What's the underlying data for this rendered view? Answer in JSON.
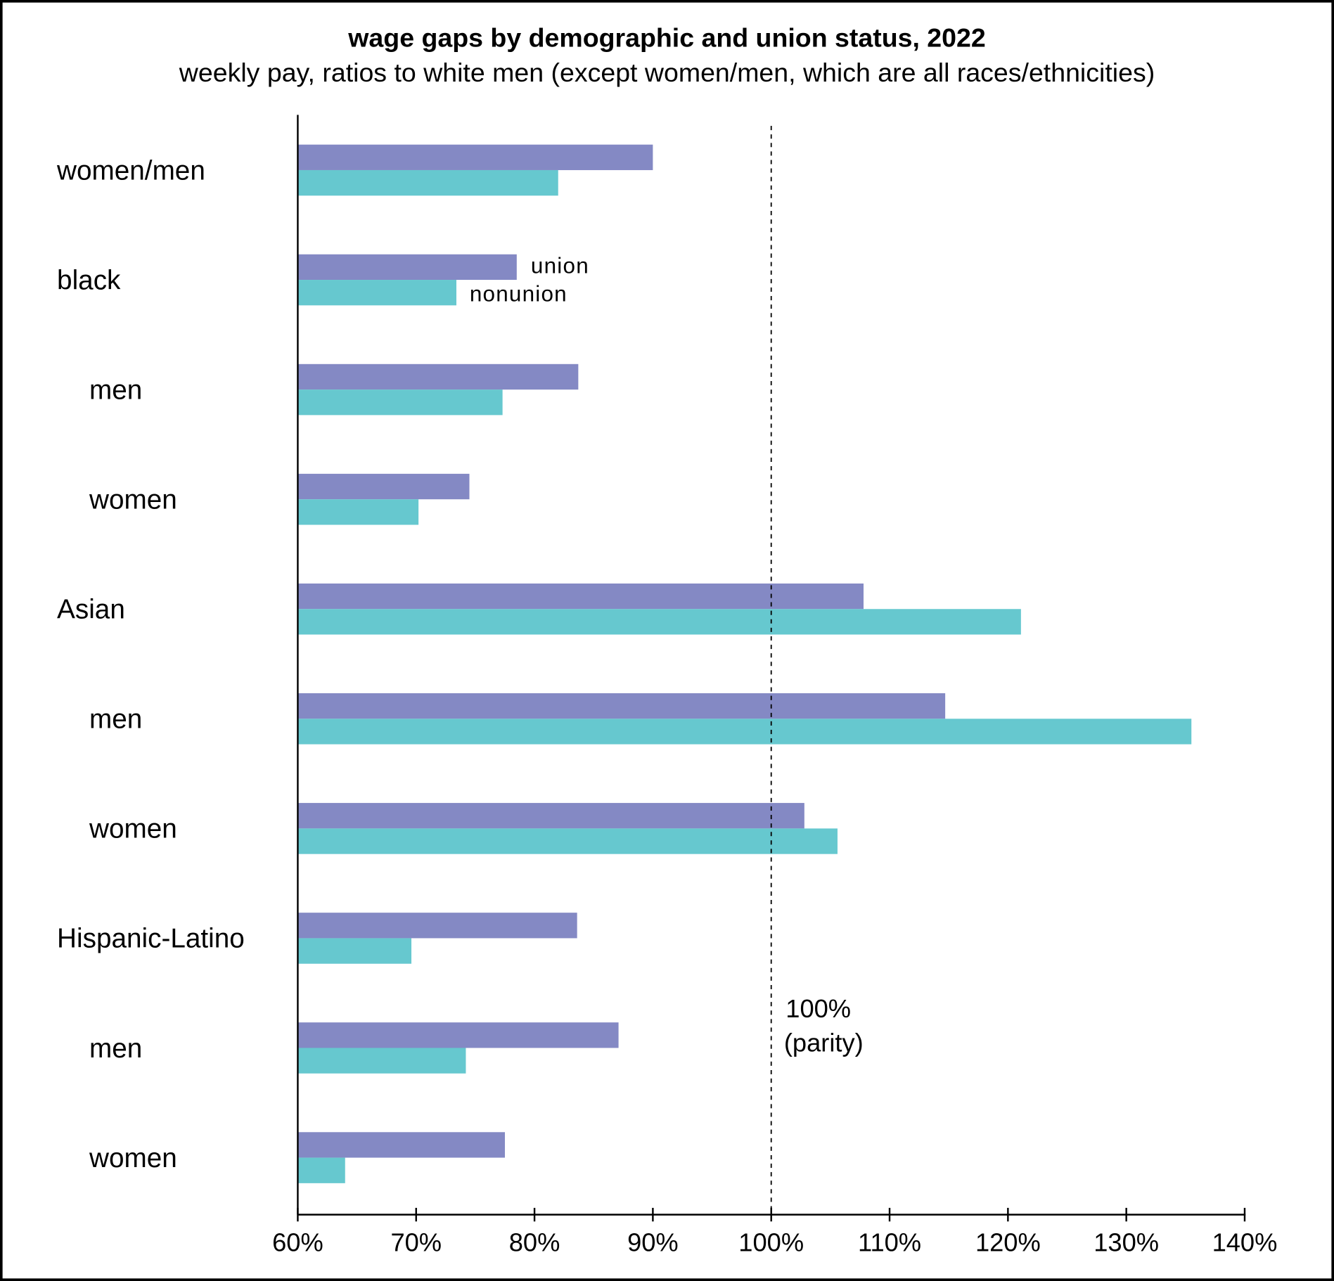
{
  "chart_data": {
    "type": "bar",
    "orientation": "horizontal",
    "title": "wage gaps by demographic and union status, 2022",
    "subtitle": "weekly pay, ratios to white men (except women/men, which are all races/ethnicities)",
    "categories": [
      "women/men",
      "black",
      "men",
      "women",
      "Asian",
      "men",
      "women",
      "Hispanic-Latino",
      "men",
      "women"
    ],
    "category_indent": [
      false,
      false,
      true,
      true,
      false,
      true,
      true,
      false,
      true,
      true
    ],
    "series": [
      {
        "name": "union",
        "color": "#8489C4",
        "values": [
          90.0,
          78.5,
          83.7,
          74.5,
          107.8,
          114.7,
          102.8,
          83.6,
          87.1,
          77.5
        ]
      },
      {
        "name": "nonunion",
        "color": "#66C8CF",
        "values": [
          82.0,
          73.4,
          77.3,
          70.2,
          121.1,
          135.5,
          105.6,
          69.6,
          74.2,
          64.0
        ]
      }
    ],
    "xlim": [
      60,
      140
    ],
    "xticks": [
      "60%",
      "70%",
      "80%",
      "90%",
      "100%",
      "110%",
      "120%",
      "130%",
      "140%"
    ],
    "xtick_values": [
      60,
      70,
      80,
      90,
      100,
      110,
      120,
      130,
      140
    ],
    "reference_line": {
      "value": 100,
      "style": "dashed",
      "label_line1": "100%",
      "label_line2": "(parity)"
    },
    "legend_placement": "inline next to black bars",
    "grid": false
  }
}
